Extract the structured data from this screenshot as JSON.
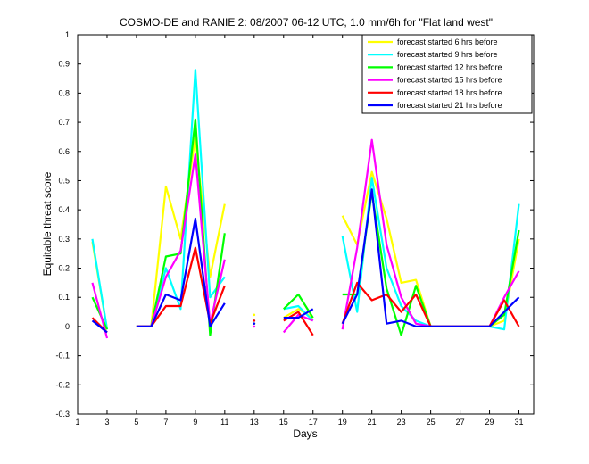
{
  "chart_data": {
    "type": "line",
    "title": "COSMO-DE and RANIE 2: 08/2007 06-12 UTC, 1.0 mm/6h for \"Flat land west\"",
    "xlabel": "Days",
    "ylabel": "Equitable threat score",
    "xlim": [
      1,
      32
    ],
    "ylim": [
      -0.3,
      1
    ],
    "xticks": [
      1,
      3,
      5,
      7,
      9,
      11,
      13,
      15,
      17,
      19,
      21,
      23,
      25,
      27,
      29,
      31
    ],
    "yticks": [
      -0.3,
      -0.2,
      -0.1,
      0,
      0.1,
      0.2,
      0.3,
      0.4,
      0.5,
      0.6,
      0.7,
      0.8,
      0.9,
      1
    ],
    "legend_position": "top-right",
    "series": [
      {
        "name": "forecast started 6 hrs before",
        "color": "#ffff00",
        "points": [
          [
            2,
            0.29
          ],
          [
            3,
            -0.01
          ],
          [
            5,
            0
          ],
          [
            6,
            0
          ],
          [
            7,
            0.48
          ],
          [
            8,
            0.3
          ],
          [
            9,
            0.65
          ],
          [
            10,
            0.17
          ],
          [
            11,
            0.42
          ],
          [
            13,
            0.04
          ],
          [
            15,
            0.03
          ],
          [
            16,
            0.06
          ],
          [
            17,
            0.03
          ],
          [
            19,
            0.38
          ],
          [
            20,
            0.28
          ],
          [
            21,
            0.53
          ],
          [
            22,
            0.37
          ],
          [
            23,
            0.15
          ],
          [
            24,
            0.16
          ],
          [
            25,
            0
          ],
          [
            26,
            0
          ],
          [
            27,
            0
          ],
          [
            28,
            0
          ],
          [
            29,
            0
          ],
          [
            30,
            0.02
          ],
          [
            31,
            0.3
          ]
        ]
      },
      {
        "name": "forecast started 9 hrs before",
        "color": "#00ffff",
        "points": [
          [
            2,
            0.3
          ],
          [
            3,
            -0.01
          ],
          [
            5,
            0
          ],
          [
            6,
            0
          ],
          [
            7,
            0.2
          ],
          [
            8,
            0.06
          ],
          [
            9,
            0.88
          ],
          [
            10,
            0.1
          ],
          [
            11,
            0.17
          ],
          [
            13,
            0.02
          ],
          [
            15,
            0.06
          ],
          [
            16,
            0.07
          ],
          [
            17,
            0.02
          ],
          [
            19,
            0.31
          ],
          [
            20,
            0.05
          ],
          [
            21,
            0.51
          ],
          [
            22,
            0.2
          ],
          [
            23,
            0.07
          ],
          [
            24,
            0.02
          ],
          [
            25,
            0
          ],
          [
            26,
            0
          ],
          [
            27,
            0
          ],
          [
            28,
            0
          ],
          [
            29,
            0
          ],
          [
            30,
            -0.01
          ],
          [
            31,
            0.42
          ]
        ]
      },
      {
        "name": "forecast started 12 hrs before",
        "color": "#00ff00",
        "points": [
          [
            2,
            0.1
          ],
          [
            3,
            -0.01
          ],
          [
            5,
            0
          ],
          [
            6,
            0
          ],
          [
            7,
            0.24
          ],
          [
            8,
            0.25
          ],
          [
            9,
            0.71
          ],
          [
            10,
            -0.03
          ],
          [
            11,
            0.32
          ],
          [
            13,
            0.01
          ],
          [
            15,
            0.06
          ],
          [
            16,
            0.11
          ],
          [
            17,
            0.03
          ],
          [
            19,
            0.11
          ],
          [
            20,
            0.11
          ],
          [
            21,
            0.46
          ],
          [
            22,
            0.13
          ],
          [
            23,
            -0.03
          ],
          [
            24,
            0.14
          ],
          [
            25,
            0
          ],
          [
            26,
            0
          ],
          [
            27,
            0
          ],
          [
            28,
            0
          ],
          [
            29,
            0
          ],
          [
            30,
            0.04
          ],
          [
            31,
            0.33
          ]
        ]
      },
      {
        "name": "forecast started 15 hrs before",
        "color": "#ff00ff",
        "points": [
          [
            2,
            0.15
          ],
          [
            3,
            -0.04
          ],
          [
            5,
            0
          ],
          [
            6,
            0
          ],
          [
            7,
            0.17
          ],
          [
            8,
            0.26
          ],
          [
            9,
            0.59
          ],
          [
            10,
            0.01
          ],
          [
            11,
            0.23
          ],
          [
            13,
            0
          ],
          [
            15,
            -0.02
          ],
          [
            16,
            0.04
          ],
          [
            17,
            0.02
          ],
          [
            19,
            -0.01
          ],
          [
            20,
            0.27
          ],
          [
            21,
            0.64
          ],
          [
            22,
            0.28
          ],
          [
            23,
            0.1
          ],
          [
            24,
            0.01
          ],
          [
            25,
            0
          ],
          [
            26,
            0
          ],
          [
            27,
            0
          ],
          [
            28,
            0
          ],
          [
            29,
            0
          ],
          [
            30,
            0.1
          ],
          [
            31,
            0.19
          ]
        ]
      },
      {
        "name": "forecast started 18 hrs before",
        "color": "#ff0000",
        "points": [
          [
            2,
            0.03
          ],
          [
            3,
            -0.02
          ],
          [
            5,
            0
          ],
          [
            6,
            0
          ],
          [
            7,
            0.07
          ],
          [
            8,
            0.07
          ],
          [
            9,
            0.27
          ],
          [
            10,
            0.01
          ],
          [
            11,
            0.14
          ],
          [
            13,
            0.02
          ],
          [
            15,
            0.02
          ],
          [
            16,
            0.05
          ],
          [
            17,
            -0.03
          ],
          [
            19,
            0.01
          ],
          [
            20,
            0.15
          ],
          [
            21,
            0.09
          ],
          [
            22,
            0.11
          ],
          [
            23,
            0.05
          ],
          [
            24,
            0.11
          ],
          [
            25,
            0
          ],
          [
            26,
            0
          ],
          [
            27,
            0
          ],
          [
            28,
            0
          ],
          [
            29,
            0
          ],
          [
            30,
            0.09
          ],
          [
            31,
            0
          ]
        ]
      },
      {
        "name": "forecast started 21 hrs before",
        "color": "#0000ff",
        "points": [
          [
            2,
            0.02
          ],
          [
            3,
            -0.02
          ],
          [
            5,
            0
          ],
          [
            6,
            0
          ],
          [
            7,
            0.11
          ],
          [
            8,
            0.09
          ],
          [
            9,
            0.37
          ],
          [
            10,
            0
          ],
          [
            11,
            0.08
          ],
          [
            13,
            0.01
          ],
          [
            15,
            0.03
          ],
          [
            16,
            0.03
          ],
          [
            17,
            0.06
          ],
          [
            19,
            0.01
          ],
          [
            20,
            0.11
          ],
          [
            21,
            0.47
          ],
          [
            22,
            0.01
          ],
          [
            23,
            0.02
          ],
          [
            24,
            0
          ],
          [
            25,
            0
          ],
          [
            26,
            0
          ],
          [
            27,
            0
          ],
          [
            28,
            0
          ],
          [
            29,
            0
          ],
          [
            30,
            0.05
          ],
          [
            31,
            0.1
          ]
        ]
      }
    ]
  }
}
